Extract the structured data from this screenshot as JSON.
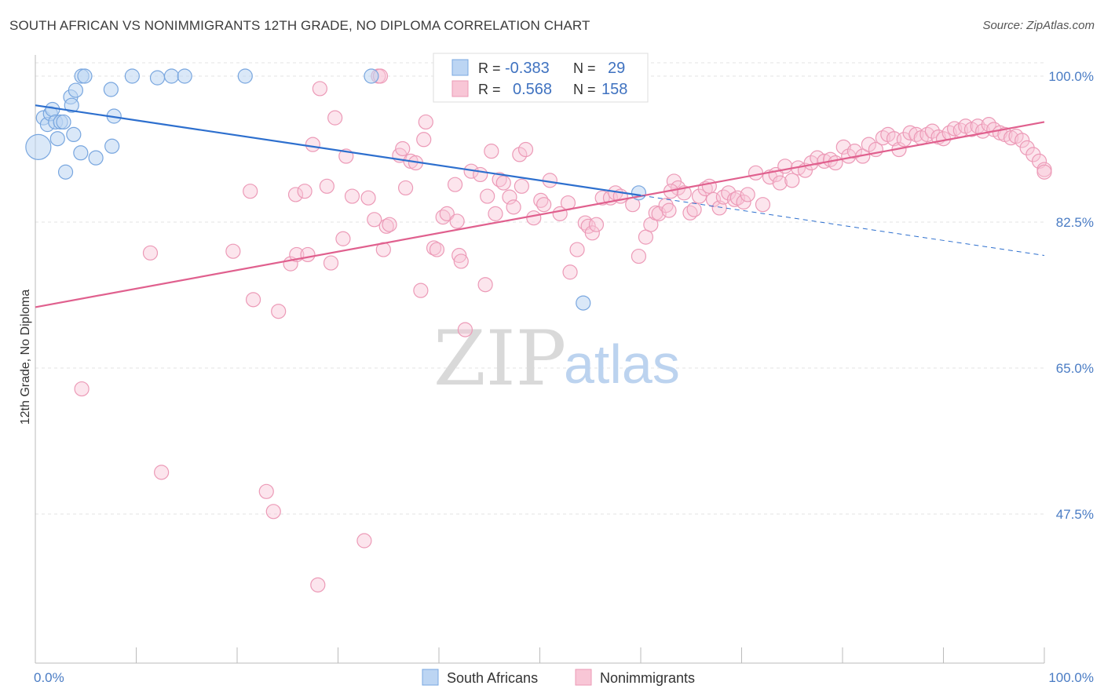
{
  "title": "SOUTH AFRICAN VS NONIMMIGRANTS 12TH GRADE, NO DIPLOMA CORRELATION CHART",
  "source": "Source: ZipAtlas.com",
  "watermark": {
    "zip": "ZIP",
    "atlas": "atlas"
  },
  "colors": {
    "blue": "#6fa3e0",
    "blue_line": "#2d6fce",
    "pink": "#ee8fb0",
    "pink_line": "#e0608e"
  },
  "legend": {
    "rows": [
      {
        "r_label": "R =",
        "r_value": "-0.383",
        "n_label": "N =",
        "n_value": "29"
      },
      {
        "r_label": "R =",
        "r_value": "0.568",
        "n_label": "N =",
        "n_value": "158"
      }
    ]
  },
  "chart_data": {
    "type": "scatter",
    "title": "SOUTH AFRICAN VS NONIMMIGRANTS 12TH GRADE, NO DIPLOMA CORRELATION CHART",
    "xlabel": "",
    "ylabel": "12th Grade, No Diploma",
    "xlim": [
      0,
      100
    ],
    "ylim": [
      30,
      101.5
    ],
    "x_tick_labels": [
      "0.0%",
      "100.0%"
    ],
    "y_ticks": [
      47.5,
      65.0,
      82.5,
      100.0
    ],
    "y_tick_labels": [
      "47.5%",
      "65.0%",
      "82.5%",
      "100.0%"
    ],
    "grid": true,
    "legend_position": "bottom",
    "series": [
      {
        "name": "South Africans",
        "trend": {
          "x1": 0,
          "y1": 96.5,
          "x2": 100,
          "y2": 78.5,
          "solid_until": 60
        },
        "points": [
          [
            0.3,
            91.5,
            16
          ],
          [
            0.8,
            95.0,
            9
          ],
          [
            1.2,
            94.2,
            9
          ],
          [
            1.5,
            95.5,
            9
          ],
          [
            1.7,
            96.0,
            9
          ],
          [
            2.0,
            94.5,
            9
          ],
          [
            2.2,
            92.5,
            9
          ],
          [
            2.5,
            94.5,
            9
          ],
          [
            2.8,
            94.5,
            9
          ],
          [
            3.0,
            88.5,
            9
          ],
          [
            3.5,
            97.5,
            9
          ],
          [
            3.6,
            96.5,
            9
          ],
          [
            4.0,
            98.3,
            9
          ],
          [
            3.8,
            93.0,
            9
          ],
          [
            4.5,
            90.8,
            9
          ],
          [
            4.6,
            100.0,
            9
          ],
          [
            4.9,
            100.0,
            9
          ],
          [
            6.0,
            90.2,
            9
          ],
          [
            7.5,
            98.4,
            9
          ],
          [
            7.6,
            91.6,
            9
          ],
          [
            7.8,
            95.2,
            9
          ],
          [
            9.6,
            100.0,
            9
          ],
          [
            12.1,
            99.8,
            9
          ],
          [
            13.5,
            100.0,
            9
          ],
          [
            14.8,
            100.0,
            9
          ],
          [
            20.8,
            100.0,
            9
          ],
          [
            33.3,
            100.0,
            9
          ],
          [
            54.3,
            72.8,
            9
          ],
          [
            59.8,
            86.0,
            9
          ]
        ]
      },
      {
        "name": "Nonimmigrants",
        "trend": {
          "x1": 0,
          "y1": 72.3,
          "x2": 100,
          "y2": 94.5
        },
        "points": [
          [
            4.6,
            62.5
          ],
          [
            11.4,
            78.8
          ],
          [
            12.5,
            52.5
          ],
          [
            19.6,
            79.0
          ],
          [
            21.3,
            86.2
          ],
          [
            21.6,
            73.2
          ],
          [
            22.9,
            50.2
          ],
          [
            23.6,
            47.8
          ],
          [
            24.1,
            71.8
          ],
          [
            25.3,
            77.5
          ],
          [
            25.8,
            85.8
          ],
          [
            25.9,
            78.6
          ],
          [
            26.7,
            86.2
          ],
          [
            27.0,
            78.6
          ],
          [
            27.5,
            91.8
          ],
          [
            28.0,
            39.0
          ],
          [
            28.2,
            98.5
          ],
          [
            28.9,
            86.8
          ],
          [
            29.3,
            77.6
          ],
          [
            29.7,
            95.0
          ],
          [
            30.5,
            80.5
          ],
          [
            30.8,
            90.4
          ],
          [
            31.4,
            85.6
          ],
          [
            32.6,
            44.3
          ],
          [
            33.0,
            85.4
          ],
          [
            33.6,
            82.8
          ],
          [
            34.0,
            100.0
          ],
          [
            34.5,
            79.2
          ],
          [
            34.8,
            82.0
          ],
          [
            35.1,
            82.2
          ],
          [
            36.1,
            90.5
          ],
          [
            36.4,
            91.3
          ],
          [
            36.7,
            86.6
          ],
          [
            37.2,
            89.8
          ],
          [
            37.7,
            89.6
          ],
          [
            38.2,
            74.3
          ],
          [
            38.5,
            92.4
          ],
          [
            38.7,
            94.5
          ],
          [
            39.5,
            79.4
          ],
          [
            39.8,
            79.2
          ],
          [
            40.4,
            83.1
          ],
          [
            40.8,
            83.5
          ],
          [
            41.6,
            87.0
          ],
          [
            41.8,
            82.6
          ],
          [
            42.0,
            78.5
          ],
          [
            42.2,
            77.8
          ],
          [
            42.6,
            69.6
          ],
          [
            43.2,
            88.6
          ],
          [
            44.1,
            88.2
          ],
          [
            44.6,
            75.0
          ],
          [
            44.8,
            85.6
          ],
          [
            45.2,
            91.0
          ],
          [
            45.6,
            83.5
          ],
          [
            46.0,
            87.6
          ],
          [
            46.4,
            87.2
          ],
          [
            47.0,
            85.5
          ],
          [
            47.4,
            84.3
          ],
          [
            48.0,
            90.6
          ],
          [
            48.2,
            86.8
          ],
          [
            48.6,
            91.2
          ],
          [
            49.4,
            83.0
          ],
          [
            50.1,
            85.1
          ],
          [
            50.4,
            84.6
          ],
          [
            51.0,
            87.5
          ],
          [
            52.0,
            83.5
          ],
          [
            52.8,
            84.8
          ],
          [
            53.0,
            76.5
          ],
          [
            53.7,
            79.2
          ],
          [
            54.5,
            82.4
          ],
          [
            54.8,
            82.0
          ],
          [
            55.2,
            81.2
          ],
          [
            55.6,
            82.2
          ],
          [
            56.2,
            85.4
          ],
          [
            57.0,
            85.4
          ],
          [
            57.5,
            86.0
          ],
          [
            58.0,
            85.6
          ],
          [
            59.2,
            84.6
          ],
          [
            59.8,
            78.4
          ],
          [
            60.5,
            80.7
          ],
          [
            61.0,
            82.2
          ],
          [
            61.5,
            83.6
          ],
          [
            61.8,
            83.5
          ],
          [
            62.5,
            84.5
          ],
          [
            62.8,
            83.9
          ],
          [
            63.3,
            87.4
          ],
          [
            63.7,
            86.6
          ],
          [
            64.3,
            86.0
          ],
          [
            64.9,
            83.6
          ],
          [
            65.3,
            84.0
          ],
          [
            65.8,
            85.6
          ],
          [
            66.4,
            86.5
          ],
          [
            66.8,
            86.8
          ],
          [
            67.2,
            85.2
          ],
          [
            67.8,
            84.2
          ],
          [
            68.2,
            85.5
          ],
          [
            68.7,
            86.0
          ],
          [
            69.3,
            85.2
          ],
          [
            69.6,
            85.4
          ],
          [
            70.2,
            84.9
          ],
          [
            70.6,
            85.8
          ],
          [
            71.4,
            88.4
          ],
          [
            72.1,
            84.6
          ],
          [
            72.8,
            87.9
          ],
          [
            73.4,
            88.2
          ],
          [
            73.8,
            87.2
          ],
          [
            74.3,
            89.2
          ],
          [
            75.0,
            87.5
          ],
          [
            75.6,
            89.0
          ],
          [
            76.3,
            88.7
          ],
          [
            76.9,
            89.6
          ],
          [
            77.5,
            90.2
          ],
          [
            78.2,
            89.8
          ],
          [
            78.8,
            90.0
          ],
          [
            79.3,
            89.6
          ],
          [
            80.1,
            91.5
          ],
          [
            80.6,
            90.4
          ],
          [
            81.2,
            91.0
          ],
          [
            82.0,
            90.4
          ],
          [
            82.6,
            91.8
          ],
          [
            83.3,
            91.2
          ],
          [
            84.0,
            92.6
          ],
          [
            84.5,
            93.0
          ],
          [
            85.1,
            92.5
          ],
          [
            85.6,
            91.2
          ],
          [
            86.1,
            92.4
          ],
          [
            86.7,
            93.2
          ],
          [
            87.3,
            93.0
          ],
          [
            87.8,
            92.6
          ],
          [
            88.4,
            93.0
          ],
          [
            88.9,
            93.4
          ],
          [
            89.5,
            92.7
          ],
          [
            90.0,
            92.5
          ],
          [
            90.6,
            93.2
          ],
          [
            91.1,
            93.7
          ],
          [
            91.7,
            93.5
          ],
          [
            92.2,
            94.0
          ],
          [
            92.8,
            93.6
          ],
          [
            93.4,
            94.0
          ],
          [
            93.9,
            93.4
          ],
          [
            94.5,
            94.2
          ],
          [
            95.0,
            93.6
          ],
          [
            95.6,
            93.2
          ],
          [
            96.1,
            93.0
          ],
          [
            96.7,
            92.6
          ],
          [
            97.2,
            92.8
          ],
          [
            97.8,
            92.3
          ],
          [
            98.3,
            91.4
          ],
          [
            98.9,
            90.6
          ],
          [
            99.5,
            89.8
          ],
          [
            100.0,
            88.8
          ],
          [
            100.0,
            88.5
          ],
          [
            34.2,
            100.0
          ],
          [
            63.0,
            86.2
          ]
        ]
      }
    ]
  },
  "bottom_legend": [
    {
      "name": "South Africans"
    },
    {
      "name": "Nonimmigrants"
    }
  ]
}
